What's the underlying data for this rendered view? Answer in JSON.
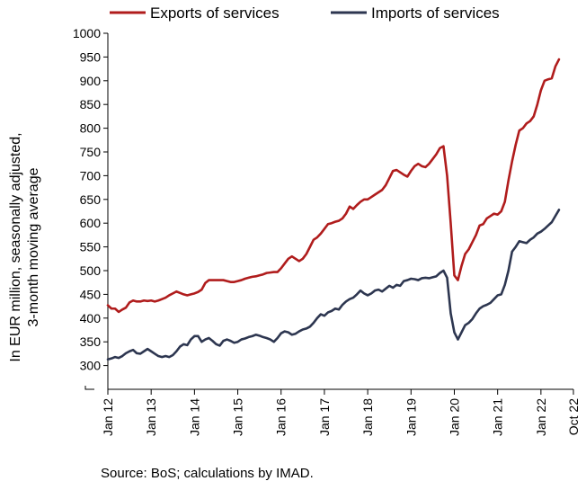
{
  "chart_data": {
    "type": "line",
    "ylabel_lines": [
      "In EUR million, seasonally adjusted,",
      "3-month moving average"
    ],
    "ylim": [
      250,
      1000
    ],
    "yticks": [
      300,
      350,
      400,
      450,
      500,
      550,
      600,
      650,
      700,
      750,
      800,
      850,
      900,
      950,
      1000
    ],
    "ytick_labels": [
      "300",
      "350",
      "400",
      "450",
      "500",
      "550",
      "600",
      "650",
      "700",
      "750",
      "800",
      "850",
      "900",
      "950",
      "1000"
    ],
    "xticks": [
      {
        "label": "Jan 12",
        "t": 0
      },
      {
        "label": "Jan 13",
        "t": 12
      },
      {
        "label": "Jan 14",
        "t": 24
      },
      {
        "label": "Jan 15",
        "t": 36
      },
      {
        "label": "Jan 16",
        "t": 48
      },
      {
        "label": "Jan 17",
        "t": 60
      },
      {
        "label": "Jan 18",
        "t": 72
      },
      {
        "label": "Jan 19",
        "t": 84
      },
      {
        "label": "Jan 20",
        "t": 96
      },
      {
        "label": "Jan 21",
        "t": 108
      },
      {
        "label": "Jan 22",
        "t": 120
      },
      {
        "label": "Oct 22",
        "t": 129
      }
    ],
    "grid": false,
    "legend_position": "top",
    "series": [
      {
        "name": "Exports of services",
        "color": "#b01c1c",
        "points": [
          [
            0,
            427
          ],
          [
            1,
            420
          ],
          [
            2,
            420
          ],
          [
            3,
            413
          ],
          [
            4,
            418
          ],
          [
            5,
            422
          ],
          [
            6,
            433
          ],
          [
            7,
            437
          ],
          [
            8,
            435
          ],
          [
            9,
            435
          ],
          [
            10,
            437
          ],
          [
            11,
            436
          ],
          [
            12,
            437
          ],
          [
            13,
            435
          ],
          [
            14,
            437
          ],
          [
            15,
            440
          ],
          [
            16,
            443
          ],
          [
            17,
            448
          ],
          [
            18,
            452
          ],
          [
            19,
            456
          ],
          [
            20,
            453
          ],
          [
            21,
            450
          ],
          [
            22,
            448
          ],
          [
            23,
            450
          ],
          [
            24,
            452
          ],
          [
            25,
            455
          ],
          [
            26,
            460
          ],
          [
            27,
            474
          ],
          [
            28,
            480
          ],
          [
            29,
            480
          ],
          [
            30,
            480
          ],
          [
            31,
            480
          ],
          [
            32,
            480
          ],
          [
            33,
            478
          ],
          [
            34,
            476
          ],
          [
            35,
            476
          ],
          [
            36,
            478
          ],
          [
            37,
            480
          ],
          [
            38,
            483
          ],
          [
            39,
            485
          ],
          [
            40,
            487
          ],
          [
            41,
            488
          ],
          [
            42,
            490
          ],
          [
            43,
            492
          ],
          [
            44,
            495
          ],
          [
            45,
            496
          ],
          [
            46,
            497
          ],
          [
            47,
            497
          ],
          [
            48,
            505
          ],
          [
            49,
            515
          ],
          [
            50,
            525
          ],
          [
            51,
            530
          ],
          [
            52,
            525
          ],
          [
            53,
            520
          ],
          [
            54,
            525
          ],
          [
            55,
            535
          ],
          [
            56,
            550
          ],
          [
            57,
            565
          ],
          [
            58,
            570
          ],
          [
            59,
            578
          ],
          [
            60,
            588
          ],
          [
            61,
            598
          ],
          [
            62,
            600
          ],
          [
            63,
            603
          ],
          [
            64,
            605
          ],
          [
            65,
            610
          ],
          [
            66,
            620
          ],
          [
            67,
            635
          ],
          [
            68,
            630
          ],
          [
            69,
            638
          ],
          [
            70,
            645
          ],
          [
            71,
            650
          ],
          [
            72,
            650
          ],
          [
            73,
            655
          ],
          [
            74,
            660
          ],
          [
            75,
            665
          ],
          [
            76,
            670
          ],
          [
            77,
            680
          ],
          [
            78,
            695
          ],
          [
            79,
            710
          ],
          [
            80,
            712
          ],
          [
            81,
            707
          ],
          [
            82,
            702
          ],
          [
            83,
            698
          ],
          [
            84,
            710
          ],
          [
            85,
            720
          ],
          [
            86,
            725
          ],
          [
            87,
            720
          ],
          [
            88,
            718
          ],
          [
            89,
            725
          ],
          [
            90,
            735
          ],
          [
            91,
            745
          ],
          [
            92,
            758
          ],
          [
            93,
            762
          ],
          [
            94,
            700
          ],
          [
            95,
            600
          ],
          [
            96,
            490
          ],
          [
            97,
            480
          ],
          [
            98,
            510
          ],
          [
            99,
            535
          ],
          [
            100,
            545
          ],
          [
            101,
            560
          ],
          [
            102,
            575
          ],
          [
            103,
            595
          ],
          [
            104,
            598
          ],
          [
            105,
            610
          ],
          [
            106,
            615
          ],
          [
            107,
            620
          ],
          [
            108,
            618
          ],
          [
            109,
            625
          ],
          [
            110,
            645
          ],
          [
            111,
            690
          ],
          [
            112,
            730
          ],
          [
            113,
            765
          ],
          [
            114,
            795
          ],
          [
            115,
            800
          ],
          [
            116,
            810
          ],
          [
            117,
            815
          ],
          [
            118,
            825
          ],
          [
            119,
            850
          ],
          [
            120,
            880
          ],
          [
            121,
            900
          ],
          [
            122,
            903
          ],
          [
            123,
            905
          ],
          [
            124,
            930
          ],
          [
            125,
            945
          ]
        ]
      },
      {
        "name": "Imports of services",
        "color": "#2d3650",
        "points": [
          [
            0,
            313
          ],
          [
            1,
            315
          ],
          [
            2,
            318
          ],
          [
            3,
            316
          ],
          [
            4,
            320
          ],
          [
            5,
            326
          ],
          [
            6,
            330
          ],
          [
            7,
            333
          ],
          [
            8,
            326
          ],
          [
            9,
            325
          ],
          [
            10,
            330
          ],
          [
            11,
            335
          ],
          [
            12,
            330
          ],
          [
            13,
            325
          ],
          [
            14,
            320
          ],
          [
            15,
            318
          ],
          [
            16,
            320
          ],
          [
            17,
            318
          ],
          [
            18,
            322
          ],
          [
            19,
            330
          ],
          [
            20,
            340
          ],
          [
            21,
            345
          ],
          [
            22,
            343
          ],
          [
            23,
            355
          ],
          [
            24,
            362
          ],
          [
            25,
            362
          ],
          [
            26,
            350
          ],
          [
            27,
            355
          ],
          [
            28,
            358
          ],
          [
            29,
            352
          ],
          [
            30,
            345
          ],
          [
            31,
            342
          ],
          [
            32,
            352
          ],
          [
            33,
            355
          ],
          [
            34,
            352
          ],
          [
            35,
            348
          ],
          [
            36,
            350
          ],
          [
            37,
            355
          ],
          [
            38,
            357
          ],
          [
            39,
            360
          ],
          [
            40,
            362
          ],
          [
            41,
            365
          ],
          [
            42,
            363
          ],
          [
            43,
            360
          ],
          [
            44,
            358
          ],
          [
            45,
            355
          ],
          [
            46,
            350
          ],
          [
            47,
            358
          ],
          [
            48,
            368
          ],
          [
            49,
            372
          ],
          [
            50,
            370
          ],
          [
            51,
            365
          ],
          [
            52,
            367
          ],
          [
            53,
            372
          ],
          [
            54,
            376
          ],
          [
            55,
            378
          ],
          [
            56,
            382
          ],
          [
            57,
            390
          ],
          [
            58,
            400
          ],
          [
            59,
            408
          ],
          [
            60,
            405
          ],
          [
            61,
            412
          ],
          [
            62,
            415
          ],
          [
            63,
            420
          ],
          [
            64,
            418
          ],
          [
            65,
            428
          ],
          [
            66,
            435
          ],
          [
            67,
            440
          ],
          [
            68,
            443
          ],
          [
            69,
            450
          ],
          [
            70,
            458
          ],
          [
            71,
            452
          ],
          [
            72,
            448
          ],
          [
            73,
            452
          ],
          [
            74,
            458
          ],
          [
            75,
            460
          ],
          [
            76,
            456
          ],
          [
            77,
            462
          ],
          [
            78,
            468
          ],
          [
            79,
            464
          ],
          [
            80,
            470
          ],
          [
            81,
            468
          ],
          [
            82,
            478
          ],
          [
            83,
            480
          ],
          [
            84,
            483
          ],
          [
            85,
            482
          ],
          [
            86,
            480
          ],
          [
            87,
            484
          ],
          [
            88,
            485
          ],
          [
            89,
            484
          ],
          [
            90,
            486
          ],
          [
            91,
            488
          ],
          [
            92,
            495
          ],
          [
            93,
            500
          ],
          [
            94,
            485
          ],
          [
            95,
            410
          ],
          [
            96,
            370
          ],
          [
            97,
            355
          ],
          [
            98,
            370
          ],
          [
            99,
            385
          ],
          [
            100,
            390
          ],
          [
            101,
            398
          ],
          [
            102,
            410
          ],
          [
            103,
            420
          ],
          [
            104,
            425
          ],
          [
            105,
            428
          ],
          [
            106,
            432
          ],
          [
            107,
            440
          ],
          [
            108,
            448
          ],
          [
            109,
            450
          ],
          [
            110,
            470
          ],
          [
            111,
            500
          ],
          [
            112,
            540
          ],
          [
            113,
            550
          ],
          [
            114,
            562
          ],
          [
            115,
            560
          ],
          [
            116,
            558
          ],
          [
            117,
            565
          ],
          [
            118,
            570
          ],
          [
            119,
            578
          ],
          [
            120,
            582
          ],
          [
            121,
            588
          ],
          [
            122,
            595
          ],
          [
            123,
            602
          ],
          [
            124,
            615
          ],
          [
            125,
            628
          ]
        ]
      }
    ]
  },
  "source": "Source: BoS; calculations by IMAD."
}
